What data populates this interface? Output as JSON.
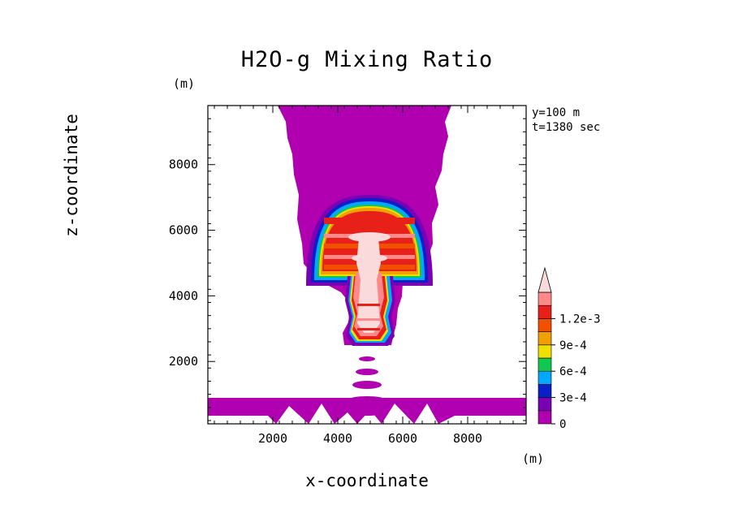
{
  "chart_data": {
    "type": "heatmap",
    "title": "H2O-g Mixing Ratio",
    "xlabel": "x-coordinate",
    "ylabel": "z-coordinate",
    "x_unit": "(m)",
    "y_unit": "(m)",
    "xlim": [
      0,
      9800
    ],
    "ylim": [
      100,
      9800
    ],
    "x_ticks": [
      2000,
      4000,
      6000,
      8000
    ],
    "y_ticks": [
      2000,
      4000,
      6000,
      8000
    ],
    "x_tick_labels": [
      "2000",
      "4000",
      "6000",
      "8000"
    ],
    "y_tick_labels": [
      "2000",
      "4000",
      "6000",
      "8000"
    ],
    "annotations": [
      "y=100 m",
      "t=1380 sec"
    ],
    "colorbar": {
      "levels": [
        0,
        0.00015,
        0.0003,
        0.00045,
        0.0006,
        0.00075,
        0.0009,
        0.00105,
        0.0012
      ],
      "tick_labels": [
        "0",
        "3e-4",
        "6e-4",
        "9e-4",
        "1.2e-3"
      ],
      "colors": [
        "#b000b0",
        "#7a00b4",
        "#0a1fc8",
        "#00a8ff",
        "#10c850",
        "#f0e000",
        "#f0a000",
        "#f05000",
        "#e8201a",
        "#ff8888",
        "#fadada"
      ],
      "extend": "max"
    },
    "features": [
      {
        "name": "mushroom cap",
        "x_range": [
          3100,
          6700
        ],
        "z_range": [
          4400,
          7000
        ],
        "max": "above 1.2e-3"
      },
      {
        "name": "updraft column",
        "x_range": [
          4300,
          5700
        ],
        "z_range": [
          2600,
          4400
        ],
        "max": "above 1.2e-3"
      },
      {
        "name": "upper moist plume",
        "x_range": [
          2400,
          7500
        ],
        "z_range": [
          7000,
          9800
        ],
        "max": "0 to 1.5e-4"
      },
      {
        "name": "boundary layer",
        "x_range": [
          0,
          9800
        ],
        "z_range": [
          100,
          900
        ],
        "max": "0 to 1.5e-4"
      }
    ]
  }
}
